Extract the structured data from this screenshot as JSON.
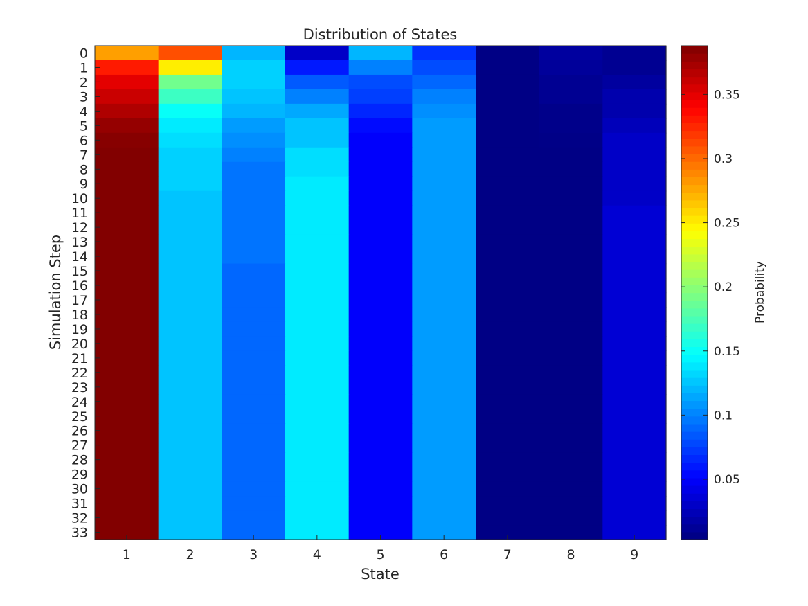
{
  "chart_data": {
    "type": "heatmap",
    "title": "Distribution of States",
    "xlabel": "State",
    "ylabel": "Simulation Step",
    "colorbar_label": "Probability",
    "colormap": "jet",
    "clim": [
      0.003,
      0.388
    ],
    "colorbar_ticks": [
      0.05,
      0.1,
      0.15,
      0.2,
      0.25,
      0.3,
      0.35
    ],
    "colorbar_tick_labels": [
      "0.05",
      "0.1",
      "0.15",
      "0.2",
      "0.25",
      "0.3",
      "0.35"
    ],
    "x_categories": [
      "1",
      "2",
      "3",
      "4",
      "5",
      "6",
      "7",
      "8",
      "9"
    ],
    "y_categories": [
      "0",
      "1",
      "2",
      "3",
      "4",
      "5",
      "6",
      "7",
      "8",
      "9",
      "10",
      "11",
      "12",
      "13",
      "14",
      "15",
      "16",
      "17",
      "18",
      "19",
      "20",
      "21",
      "22",
      "23",
      "24",
      "25",
      "26",
      "27",
      "28",
      "29",
      "30",
      "31",
      "32",
      "33"
    ],
    "values": [
      [
        0.28,
        0.31,
        0.12,
        0.03,
        0.12,
        0.07,
        0.005,
        0.015,
        0.01
      ],
      [
        0.33,
        0.25,
        0.13,
        0.06,
        0.1,
        0.08,
        0.005,
        0.013,
        0.01
      ],
      [
        0.35,
        0.19,
        0.13,
        0.085,
        0.08,
        0.09,
        0.005,
        0.01,
        0.015
      ],
      [
        0.36,
        0.17,
        0.125,
        0.1,
        0.075,
        0.1,
        0.005,
        0.01,
        0.02
      ],
      [
        0.37,
        0.15,
        0.12,
        0.115,
        0.065,
        0.105,
        0.005,
        0.007,
        0.02
      ],
      [
        0.38,
        0.14,
        0.11,
        0.125,
        0.055,
        0.11,
        0.005,
        0.007,
        0.025
      ],
      [
        0.385,
        0.135,
        0.105,
        0.125,
        0.05,
        0.11,
        0.005,
        0.006,
        0.03
      ],
      [
        0.387,
        0.13,
        0.1,
        0.135,
        0.05,
        0.11,
        0.005,
        0.005,
        0.03
      ],
      [
        0.387,
        0.13,
        0.095,
        0.135,
        0.05,
        0.11,
        0.005,
        0.005,
        0.03
      ],
      [
        0.387,
        0.13,
        0.095,
        0.14,
        0.05,
        0.11,
        0.005,
        0.005,
        0.03
      ],
      [
        0.387,
        0.125,
        0.095,
        0.14,
        0.05,
        0.11,
        0.005,
        0.005,
        0.03
      ],
      [
        0.387,
        0.125,
        0.095,
        0.14,
        0.05,
        0.11,
        0.005,
        0.005,
        0.035
      ],
      [
        0.387,
        0.125,
        0.095,
        0.14,
        0.05,
        0.11,
        0.005,
        0.005,
        0.035
      ],
      [
        0.387,
        0.125,
        0.095,
        0.14,
        0.05,
        0.11,
        0.005,
        0.005,
        0.035
      ],
      [
        0.387,
        0.125,
        0.095,
        0.14,
        0.05,
        0.11,
        0.005,
        0.005,
        0.035
      ],
      [
        0.387,
        0.125,
        0.09,
        0.14,
        0.05,
        0.11,
        0.005,
        0.005,
        0.035
      ],
      [
        0.387,
        0.125,
        0.09,
        0.14,
        0.05,
        0.11,
        0.005,
        0.005,
        0.035
      ],
      [
        0.387,
        0.125,
        0.09,
        0.14,
        0.05,
        0.11,
        0.005,
        0.005,
        0.035
      ],
      [
        0.387,
        0.125,
        0.09,
        0.14,
        0.05,
        0.11,
        0.005,
        0.005,
        0.035
      ],
      [
        0.387,
        0.125,
        0.09,
        0.14,
        0.05,
        0.11,
        0.005,
        0.005,
        0.035
      ],
      [
        0.387,
        0.125,
        0.09,
        0.14,
        0.05,
        0.11,
        0.005,
        0.005,
        0.035
      ],
      [
        0.387,
        0.125,
        0.09,
        0.14,
        0.05,
        0.11,
        0.005,
        0.005,
        0.035
      ],
      [
        0.387,
        0.125,
        0.09,
        0.14,
        0.05,
        0.11,
        0.005,
        0.005,
        0.035
      ],
      [
        0.387,
        0.125,
        0.09,
        0.14,
        0.05,
        0.11,
        0.005,
        0.005,
        0.035
      ],
      [
        0.387,
        0.125,
        0.09,
        0.14,
        0.05,
        0.11,
        0.005,
        0.005,
        0.035
      ],
      [
        0.387,
        0.125,
        0.09,
        0.14,
        0.05,
        0.11,
        0.005,
        0.005,
        0.035
      ],
      [
        0.387,
        0.125,
        0.09,
        0.14,
        0.05,
        0.11,
        0.005,
        0.005,
        0.035
      ],
      [
        0.387,
        0.125,
        0.09,
        0.14,
        0.05,
        0.11,
        0.005,
        0.005,
        0.035
      ],
      [
        0.387,
        0.125,
        0.09,
        0.14,
        0.05,
        0.11,
        0.005,
        0.005,
        0.035
      ],
      [
        0.387,
        0.125,
        0.09,
        0.14,
        0.05,
        0.11,
        0.005,
        0.005,
        0.035
      ],
      [
        0.387,
        0.125,
        0.09,
        0.14,
        0.05,
        0.11,
        0.005,
        0.005,
        0.035
      ],
      [
        0.387,
        0.125,
        0.09,
        0.14,
        0.05,
        0.11,
        0.005,
        0.005,
        0.035
      ],
      [
        0.387,
        0.125,
        0.09,
        0.14,
        0.05,
        0.11,
        0.005,
        0.005,
        0.035
      ],
      [
        0.387,
        0.125,
        0.09,
        0.14,
        0.05,
        0.11,
        0.005,
        0.005,
        0.035
      ]
    ],
    "grid": false,
    "legend": "colorbar-right"
  }
}
